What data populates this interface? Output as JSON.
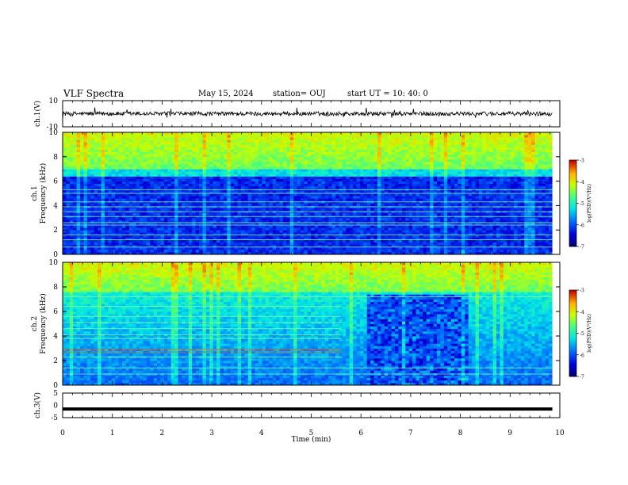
{
  "header": {
    "title": "VLF Spectra",
    "date": "May 15, 2024",
    "station": "station= OUJ",
    "start": "start  UT =   10: 40: 0"
  },
  "chart_data": [
    {
      "type": "line",
      "panel": "ch1-waveform",
      "ylabel": "ch.1(V)",
      "ylim": [
        -10,
        10
      ],
      "yticks": [
        "10",
        "-10"
      ],
      "x_range_min": [
        0,
        9.85
      ],
      "description_values": {
        "baseline": 0,
        "amplitude": 2
      }
    },
    {
      "type": "heatmap",
      "panel": "ch1-spectrogram",
      "ylabel": "ch.1\nFrequency (kHz)",
      "ylabel_lines": [
        "ch.1",
        "Frequency (kHz)"
      ],
      "ylim": [
        0,
        10
      ],
      "yticks": [
        "0",
        "2",
        "4",
        "6",
        "8",
        "10"
      ],
      "colorbar": {
        "label": "log(PSD)(V²/Hz)",
        "ticks": [
          "-3",
          "-4",
          "-5",
          "-6",
          "-7"
        ],
        "range": [
          -7,
          -3
        ]
      }
    },
    {
      "type": "heatmap",
      "panel": "ch2-spectrogram",
      "ylabel_lines": [
        "ch.2",
        "Frequency (kHz)"
      ],
      "ylim": [
        0,
        10
      ],
      "yticks": [
        "0",
        "2",
        "4",
        "6",
        "8",
        "10"
      ],
      "colorbar": {
        "label": "log(PSD)(V²/Hz)",
        "ticks": [
          "-3",
          "-4",
          "-5",
          "-6",
          "-7"
        ],
        "range": [
          -7,
          -3
        ]
      }
    },
    {
      "type": "line",
      "panel": "ch3-waveform",
      "ylabel": "ch.3(V)",
      "ylim": [
        -5,
        5
      ],
      "yticks": [
        "5",
        "0",
        "-5"
      ],
      "series": [
        {
          "values_constant": -1.5
        }
      ]
    }
  ],
  "x_axis": {
    "label": "Time (min)",
    "range": [
      0,
      10
    ],
    "ticks": [
      "0",
      "1",
      "2",
      "3",
      "4",
      "5",
      "6",
      "7",
      "8",
      "9",
      "10"
    ]
  }
}
